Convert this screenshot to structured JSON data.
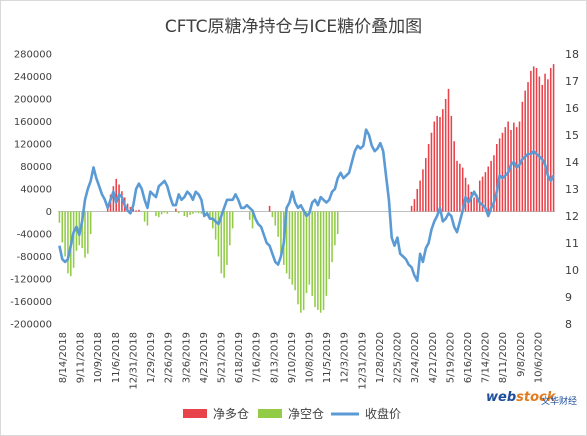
{
  "chart_data": {
    "type": "bar+line",
    "title": "CFTC原糖净持仓与ICE糖价叠加图",
    "left_axis": {
      "range": [
        -200000,
        280000
      ],
      "ticks": [
        "-200000",
        "-160000",
        "-120000",
        "-80000",
        "-40000",
        "0",
        "40000",
        "80000",
        "120000",
        "160000",
        "200000",
        "240000",
        "280000"
      ]
    },
    "right_axis": {
      "range": [
        8,
        18
      ],
      "ticks": [
        "8",
        "9",
        "10",
        "11",
        "12",
        "13",
        "14",
        "15",
        "16",
        "17",
        "18"
      ]
    },
    "x_tick_labels": [
      "8/14/2018",
      "9/11/2018",
      "10/9/2018",
      "11/6/2018",
      "12/31/2018",
      "1/29/2019",
      "2/26/2019",
      "3/26/2019",
      "4/23/2019",
      "5/21/2019",
      "6/18/2019",
      "7/16/2019",
      "8/13/2019",
      "9/10/2019",
      "10/8/2019",
      "11/5/2019",
      "12/3/2019",
      "12/31/2019",
      "1/28/2020",
      "2/25/2020",
      "3/24/2020",
      "4/21/2020",
      "5/19/2020",
      "6/16/2020",
      "7/14/2020",
      "8/11/2020",
      "9/8/2020",
      "10/6/2020"
    ],
    "series": [
      {
        "name": "净多仓",
        "color": "#e8434a",
        "values": [
          0,
          0,
          0,
          0,
          0,
          0,
          0,
          0,
          0,
          0,
          0,
          0,
          0,
          0,
          0,
          0,
          0,
          12000,
          30000,
          45000,
          58000,
          48000,
          36000,
          25000,
          14000,
          8000,
          5000,
          2000,
          3000,
          0,
          0,
          0,
          0,
          0,
          0,
          0,
          0,
          0,
          0,
          0,
          0,
          5000,
          0,
          0,
          0,
          0,
          0,
          0,
          0,
          0,
          0,
          0,
          0,
          0,
          0,
          0,
          0,
          0,
          0,
          0,
          0,
          0,
          0,
          0,
          0,
          0,
          0,
          0,
          0,
          0,
          0,
          0,
          0,
          0,
          10000,
          0,
          0,
          0,
          0,
          0,
          0,
          0,
          0,
          0,
          0,
          0,
          0,
          0,
          0,
          0,
          0,
          0,
          0,
          0,
          0,
          0,
          0,
          0,
          0,
          0,
          0,
          0,
          0,
          0,
          0,
          0,
          0,
          0,
          0,
          0,
          0,
          0,
          0,
          0,
          0,
          0,
          0,
          0,
          0,
          0,
          0,
          0,
          0,
          0,
          10000,
          22000,
          40000,
          55000,
          75000,
          95000,
          120000,
          140000,
          160000,
          170000,
          168000,
          182000,
          200000,
          218000,
          170000,
          125000,
          90000,
          85000,
          78000,
          60000,
          48000,
          35000,
          25000,
          30000,
          55000,
          62000,
          70000,
          80000,
          90000,
          100000,
          120000,
          130000,
          140000,
          150000,
          160000,
          145000,
          158000,
          150000,
          160000,
          195000,
          215000,
          230000,
          250000,
          258000,
          255000,
          240000,
          225000,
          245000,
          235000,
          255000,
          262000
        ]
      },
      {
        "name": "净空仓",
        "color": "#92cc47",
        "values": [
          -20000,
          -55000,
          -80000,
          -110000,
          -115000,
          -100000,
          -70000,
          -60000,
          -65000,
          -82000,
          -75000,
          -40000,
          0,
          0,
          0,
          0,
          0,
          0,
          0,
          0,
          0,
          0,
          0,
          0,
          0,
          0,
          0,
          0,
          0,
          0,
          -18000,
          -25000,
          0,
          0,
          -8000,
          -10000,
          -5000,
          -2000,
          -4000,
          0,
          0,
          0,
          -3000,
          0,
          -8000,
          -10000,
          -6000,
          -4000,
          -2000,
          -3000,
          -4000,
          -5000,
          -8000,
          -10000,
          -30000,
          -50000,
          -80000,
          -110000,
          -118000,
          -95000,
          -60000,
          -30000,
          0,
          0,
          0,
          0,
          0,
          -15000,
          -30000,
          0,
          0,
          0,
          0,
          0,
          0,
          -10000,
          -25000,
          -45000,
          -75000,
          -95000,
          -110000,
          -120000,
          -130000,
          -140000,
          -165000,
          -180000,
          -175000,
          -145000,
          -130000,
          -150000,
          -170000,
          -175000,
          -180000,
          -175000,
          -150000,
          -120000,
          -90000,
          -60000,
          -40000,
          0,
          0,
          0,
          0,
          0,
          0,
          0,
          0,
          0,
          0,
          0,
          0,
          0,
          0,
          0,
          0,
          0,
          0,
          0,
          0,
          0,
          0,
          0,
          0,
          0,
          0,
          0,
          0,
          0,
          0,
          0,
          0,
          0,
          0,
          0,
          0,
          0,
          0,
          0,
          0,
          0,
          0,
          0,
          0,
          0,
          0,
          0,
          0,
          0,
          0,
          0,
          0,
          0,
          0,
          0,
          0,
          0,
          0,
          0,
          0,
          0,
          0,
          0,
          0,
          0,
          0,
          0,
          0,
          0,
          0,
          0,
          0,
          0,
          0,
          0,
          0,
          0,
          0,
          0,
          0,
          0,
          0,
          0,
          0
        ]
      },
      {
        "name": "收盘价",
        "color": "#5b9bd5",
        "axis": "right",
        "values": [
          10.9,
          10.4,
          10.3,
          10.4,
          10.9,
          11.4,
          11.6,
          11.3,
          11.8,
          12.6,
          13.0,
          13.3,
          13.8,
          13.4,
          13.1,
          12.8,
          12.6,
          12.3,
          12.6,
          12.9,
          12.5,
          12.8,
          12.7,
          12.4,
          12.2,
          12.1,
          12.4,
          13.0,
          13.2,
          13.0,
          12.6,
          12.3,
          12.9,
          12.8,
          12.7,
          13.1,
          13.2,
          13.3,
          13.1,
          12.7,
          12.4,
          12.4,
          12.8,
          12.6,
          12.7,
          12.9,
          12.8,
          12.6,
          12.9,
          12.8,
          12.6,
          12.0,
          12.1,
          11.9,
          11.9,
          11.8,
          11.7,
          12.0,
          12.3,
          12.6,
          12.6,
          12.6,
          12.8,
          12.6,
          12.3,
          12.3,
          12.4,
          12.3,
          12.2,
          11.9,
          11.7,
          11.6,
          11.3,
          11.0,
          10.9,
          10.6,
          10.3,
          10.2,
          10.5,
          11.0,
          12.3,
          12.5,
          12.9,
          12.5,
          12.3,
          12.4,
          12.2,
          12.0,
          12.1,
          12.5,
          12.6,
          12.4,
          12.7,
          12.6,
          12.5,
          12.6,
          12.9,
          13.0,
          13.4,
          13.6,
          13.4,
          13.5,
          13.6,
          14.0,
          14.4,
          14.6,
          14.5,
          14.6,
          15.2,
          15.0,
          14.6,
          14.4,
          14.5,
          14.7,
          14.4,
          13.5,
          12.6,
          11.2,
          10.9,
          11.2,
          10.6,
          10.5,
          10.4,
          10.2,
          10.1,
          9.8,
          9.6,
          10.6,
          10.3,
          10.8,
          11.0,
          11.5,
          11.8,
          12.0,
          12.3,
          11.8,
          11.9,
          12.1,
          12.0,
          11.6,
          11.4,
          11.8,
          12.2,
          12.7,
          12.5,
          12.7,
          12.9,
          12.7,
          12.5,
          12.4,
          12.3,
          12.0,
          12.3,
          12.5,
          12.9,
          13.5,
          13.4,
          13.5,
          13.6,
          13.9,
          14.0,
          13.8,
          13.9,
          14.1,
          14.2,
          14.3,
          14.3,
          14.4,
          14.3,
          14.2,
          14.1,
          13.9,
          13.5,
          13.3,
          13.5
        ]
      }
    ],
    "legend": {
      "position": "bottom"
    },
    "watermark": "webstock 文华财经"
  }
}
